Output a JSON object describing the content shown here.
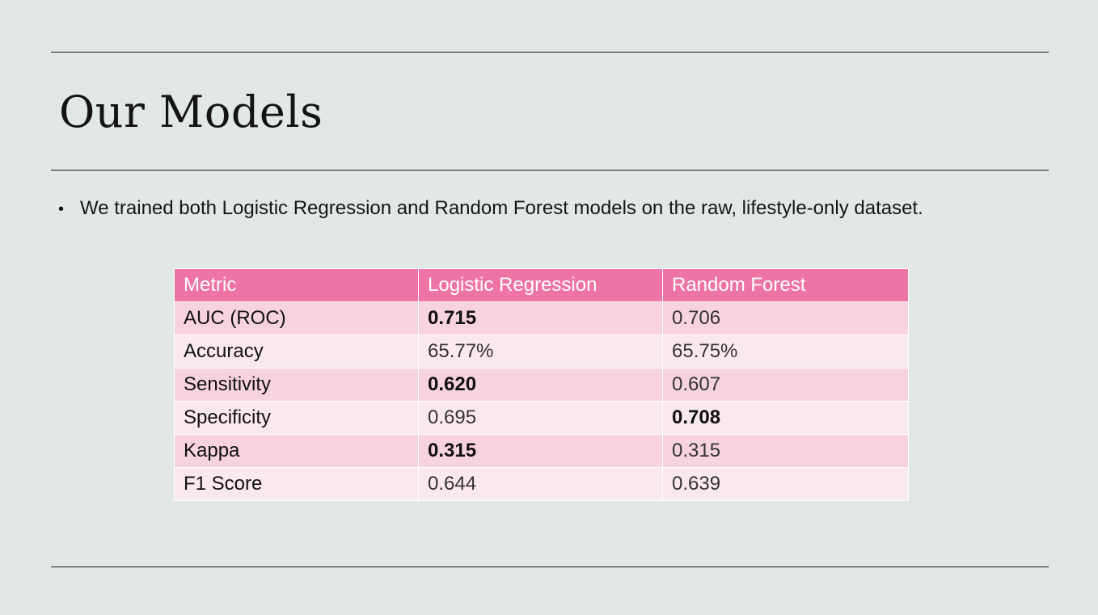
{
  "slide": {
    "title": "Our Models",
    "bullets": [
      "We trained both Logistic Regression and Random Forest models on the raw, lifestyle-only dataset."
    ]
  },
  "table": {
    "headers": [
      "Metric",
      "Logistic Regression",
      "Random Forest"
    ],
    "rows": [
      {
        "metric": "AUC (ROC)",
        "lr": "0.715",
        "rf": "0.706",
        "best": "lr"
      },
      {
        "metric": "Accuracy",
        "lr": "65.77%",
        "rf": "65.75%",
        "best": ""
      },
      {
        "metric": "Sensitivity",
        "lr": "0.620",
        "rf": "0.607",
        "best": "lr"
      },
      {
        "metric": "Specificity",
        "lr": "0.695",
        "rf": "0.708",
        "best": "rf"
      },
      {
        "metric": "Kappa",
        "lr": "0.315",
        "rf": "0.315",
        "best": "lr"
      },
      {
        "metric": "F1 Score",
        "lr": "0.644",
        "rf": "0.639",
        "best": ""
      }
    ]
  },
  "colors": {
    "background": "#e2e8e5",
    "header_fill": "#ee74a5",
    "row_odd": "#f7d2df",
    "row_even": "#fae8ef"
  }
}
